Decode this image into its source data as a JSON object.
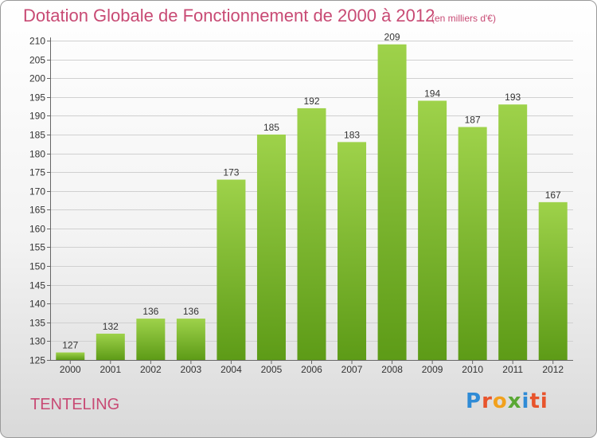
{
  "title": "Dotation Globale de Fonctionnement de 2000 à 2012",
  "subtitle": "(en milliers d'€)",
  "commune": "TENTELING",
  "logo": {
    "text": "Proxiti",
    "letters": [
      "P",
      "r",
      "o",
      "x",
      "i",
      "ti"
    ]
  },
  "colors": {
    "title": "#c84a74",
    "bar_light": "#9ed24a",
    "bar_dark": "#5d9b17",
    "grid": "#d0d0d0",
    "axis": "#666666"
  },
  "chart_data": {
    "type": "bar",
    "categories": [
      "2000",
      "2001",
      "2002",
      "2003",
      "2004",
      "2005",
      "2006",
      "2007",
      "2008",
      "2009",
      "2010",
      "2011",
      "2012"
    ],
    "values": [
      127,
      132,
      136,
      136,
      173,
      185,
      192,
      183,
      209,
      194,
      187,
      193,
      167
    ],
    "ylim": [
      125,
      210
    ],
    "yticks": [
      125,
      130,
      135,
      140,
      145,
      150,
      155,
      160,
      165,
      170,
      175,
      180,
      185,
      190,
      195,
      200,
      205,
      210
    ],
    "grid": true,
    "data_labels": true
  }
}
